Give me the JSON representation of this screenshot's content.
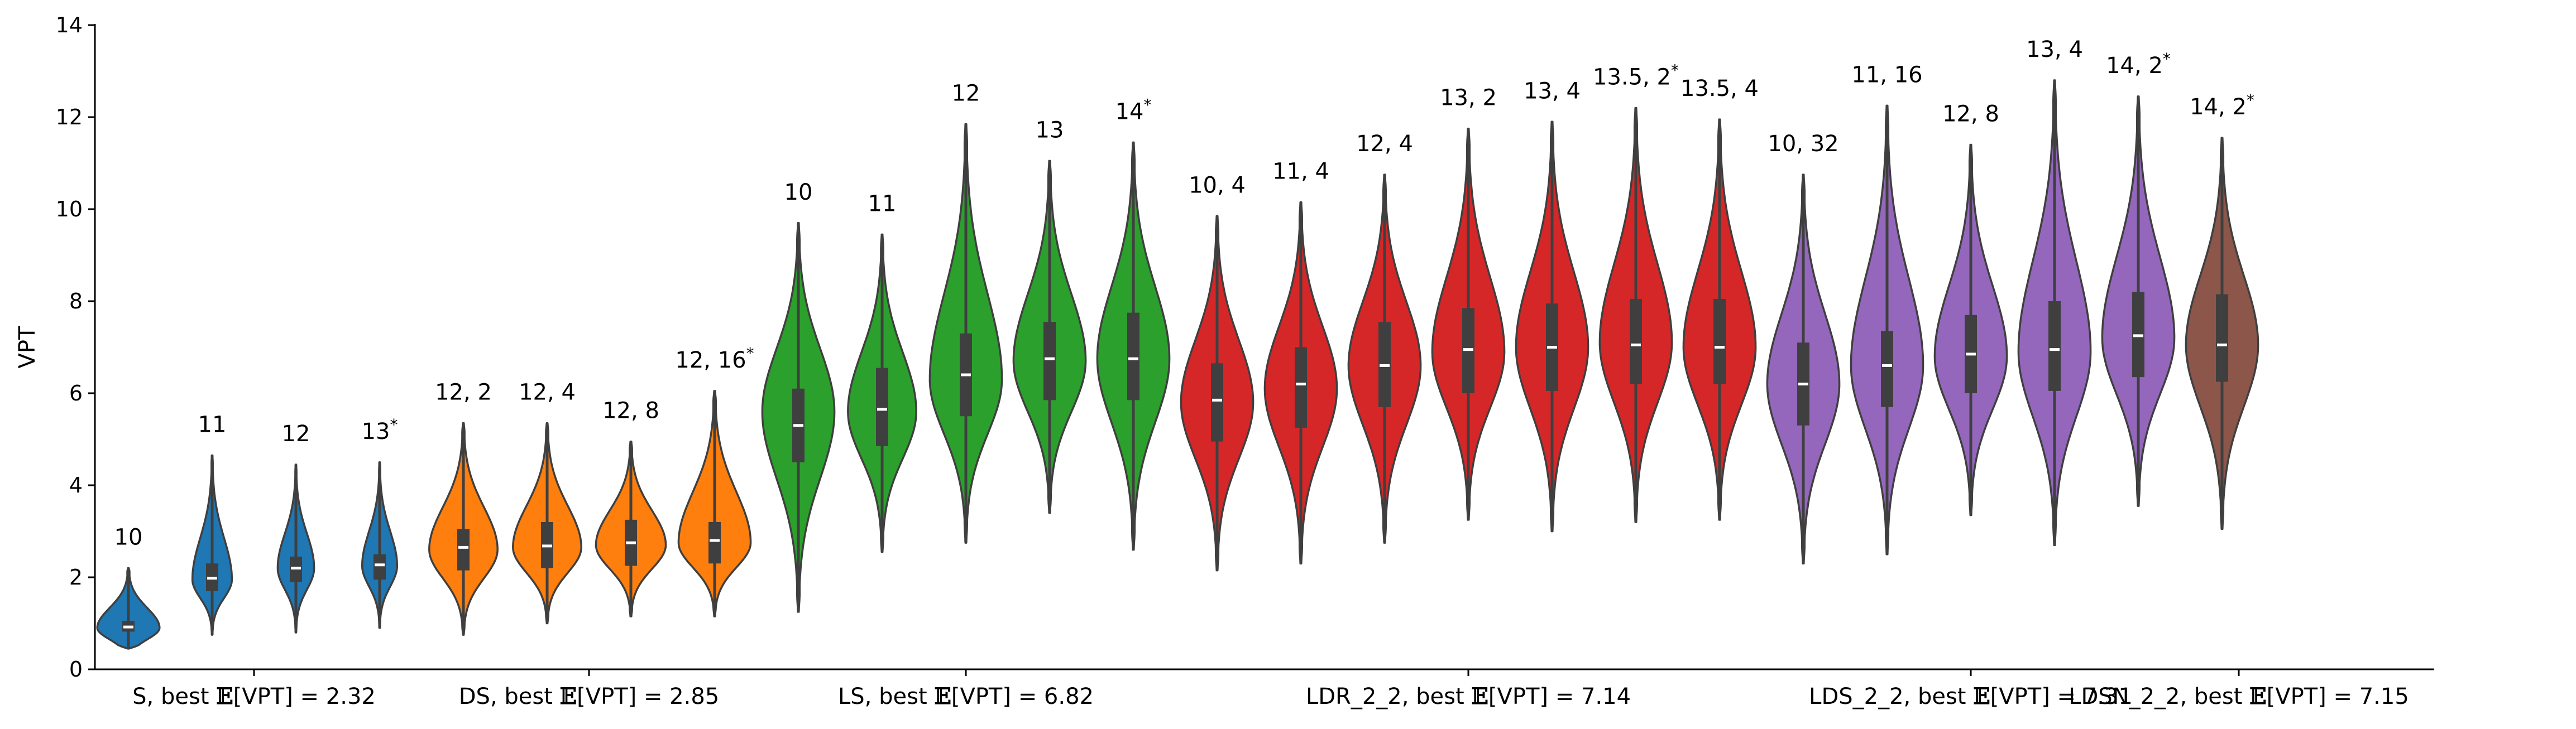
{
  "chart_data": {
    "type": "violin",
    "ylabel": "VPT",
    "ylim": [
      0,
      14
    ],
    "yticks": [
      0,
      2,
      4,
      6,
      8,
      10,
      12,
      14
    ],
    "grid": false,
    "legend": "none",
    "colors": {
      "S": "#1f77b4",
      "DS": "#ff7f0e",
      "LS": "#2ca02c",
      "LDR": "#d62728",
      "LDS": "#9467bd",
      "LDSN": "#8c564b",
      "outline": "#3f3f3f",
      "box": "#3f3f3f",
      "median": "#ffffff"
    },
    "groups": [
      {
        "key": "S",
        "label_prefix": "S, best ",
        "label_suffix": "[VPT] = 2.32",
        "violins": [
          {
            "label": "10",
            "star": false,
            "median": 0.92,
            "q1": 0.82,
            "q3": 1.05,
            "min": 0.45,
            "max": 2.2,
            "peak": 0.9,
            "width": 0.82
          },
          {
            "label": "11",
            "star": false,
            "median": 1.98,
            "q1": 1.7,
            "q3": 2.3,
            "min": 0.75,
            "max": 4.65,
            "peak": 1.95,
            "width": 0.52
          },
          {
            "label": "12",
            "star": false,
            "median": 2.2,
            "q1": 1.9,
            "q3": 2.45,
            "min": 0.8,
            "max": 4.45,
            "peak": 2.2,
            "width": 0.48
          },
          {
            "label": "13",
            "star": true,
            "median": 2.27,
            "q1": 1.95,
            "q3": 2.5,
            "min": 0.9,
            "max": 4.5,
            "peak": 2.25,
            "width": 0.46
          }
        ]
      },
      {
        "key": "DS",
        "label_prefix": "DS, best ",
        "label_suffix": "[VPT] = 2.85",
        "violins": [
          {
            "label": "12, 2",
            "star": false,
            "median": 2.65,
            "q1": 2.15,
            "q3": 3.05,
            "min": 0.75,
            "max": 5.35,
            "peak": 2.6,
            "width": 0.9
          },
          {
            "label": "12, 4",
            "star": false,
            "median": 2.68,
            "q1": 2.2,
            "q3": 3.2,
            "min": 1.0,
            "max": 5.35,
            "peak": 2.65,
            "width": 0.9
          },
          {
            "label": "12, 8",
            "star": false,
            "median": 2.75,
            "q1": 2.25,
            "q3": 3.25,
            "min": 1.15,
            "max": 4.95,
            "peak": 2.7,
            "width": 0.92
          },
          {
            "label": "12, 16",
            "star": true,
            "median": 2.8,
            "q1": 2.3,
            "q3": 3.2,
            "min": 1.15,
            "max": 6.05,
            "peak": 2.75,
            "width": 0.95
          }
        ]
      },
      {
        "key": "LS",
        "label_prefix": "LS, best ",
        "label_suffix": "[VPT] = 6.82",
        "violins": [
          {
            "label": "10",
            "star": false,
            "median": 5.3,
            "q1": 4.5,
            "q3": 6.1,
            "min": 1.25,
            "max": 9.7,
            "peak": 5.6,
            "width": 0.95
          },
          {
            "label": "11",
            "star": false,
            "median": 5.65,
            "q1": 4.85,
            "q3": 6.55,
            "min": 2.55,
            "max": 9.45,
            "peak": 5.6,
            "width": 0.9
          },
          {
            "label": "12",
            "star": false,
            "median": 6.4,
            "q1": 5.5,
            "q3": 7.3,
            "min": 2.75,
            "max": 11.85,
            "peak": 6.3,
            "width": 0.95
          },
          {
            "label": "13",
            "star": false,
            "median": 6.75,
            "q1": 5.85,
            "q3": 7.55,
            "min": 3.4,
            "max": 11.05,
            "peak": 6.7,
            "width": 0.95
          },
          {
            "label": "14",
            "star": true,
            "median": 6.75,
            "q1": 5.85,
            "q3": 7.75,
            "min": 2.6,
            "max": 11.45,
            "peak": 6.75,
            "width": 0.95
          }
        ]
      },
      {
        "key": "LDR",
        "label_prefix": "LDR_2_2, best ",
        "label_suffix": "[VPT] = 7.14",
        "violins": [
          {
            "label": "10, 4",
            "star": false,
            "median": 5.85,
            "q1": 4.95,
            "q3": 6.65,
            "min": 2.15,
            "max": 9.85,
            "peak": 5.8,
            "width": 0.95
          },
          {
            "label": "11, 4",
            "star": false,
            "median": 6.2,
            "q1": 5.25,
            "q3": 7.0,
            "min": 2.3,
            "max": 10.15,
            "peak": 6.1,
            "width": 0.95
          },
          {
            "label": "12, 4",
            "star": false,
            "median": 6.6,
            "q1": 5.7,
            "q3": 7.55,
            "min": 2.75,
            "max": 10.75,
            "peak": 6.6,
            "width": 0.95
          },
          {
            "label": "13, 2",
            "star": false,
            "median": 6.95,
            "q1": 6.0,
            "q3": 7.85,
            "min": 3.25,
            "max": 11.75,
            "peak": 6.9,
            "width": 0.95
          },
          {
            "label": "13, 4",
            "star": false,
            "median": 7.0,
            "q1": 6.05,
            "q3": 7.95,
            "min": 3.0,
            "max": 11.9,
            "peak": 7.0,
            "width": 0.95
          },
          {
            "label": "13.5, 2",
            "star": true,
            "median": 7.05,
            "q1": 6.2,
            "q3": 8.05,
            "min": 3.2,
            "max": 12.2,
            "peak": 7.1,
            "width": 0.95
          },
          {
            "label": "13.5, 4",
            "star": false,
            "median": 7.0,
            "q1": 6.2,
            "q3": 8.05,
            "min": 3.25,
            "max": 11.95,
            "peak": 7.0,
            "width": 0.95
          }
        ]
      },
      {
        "key": "LDS",
        "label_prefix": "LDS_2_2, best ",
        "label_suffix": "[VPT] = 7.31",
        "violins": [
          {
            "label": "10, 32",
            "star": false,
            "median": 6.2,
            "q1": 5.3,
            "q3": 7.1,
            "min": 2.3,
            "max": 10.75,
            "peak": 6.2,
            "width": 0.95
          },
          {
            "label": "11, 16",
            "star": false,
            "median": 6.6,
            "q1": 5.7,
            "q3": 7.35,
            "min": 2.5,
            "max": 12.25,
            "peak": 6.6,
            "width": 0.95
          },
          {
            "label": "12, 8",
            "star": false,
            "median": 6.85,
            "q1": 6.0,
            "q3": 7.7,
            "min": 3.35,
            "max": 11.4,
            "peak": 6.8,
            "width": 0.95
          },
          {
            "label": "13, 4",
            "star": false,
            "median": 6.95,
            "q1": 6.05,
            "q3": 8.0,
            "min": 2.7,
            "max": 12.8,
            "peak": 6.9,
            "width": 0.95
          },
          {
            "label": "14, 2",
            "star": true,
            "median": 7.25,
            "q1": 6.35,
            "q3": 8.2,
            "min": 3.55,
            "max": 12.45,
            "peak": 7.2,
            "width": 0.95
          }
        ]
      },
      {
        "key": "LDSN",
        "label_prefix": "LDSN_2_2, best ",
        "label_suffix": "[VPT] = 7.15",
        "violins": [
          {
            "label": "14, 2",
            "star": true,
            "median": 7.05,
            "q1": 6.25,
            "q3": 8.15,
            "min": 3.05,
            "max": 11.55,
            "peak": 7.05,
            "width": 0.95
          }
        ]
      }
    ]
  }
}
